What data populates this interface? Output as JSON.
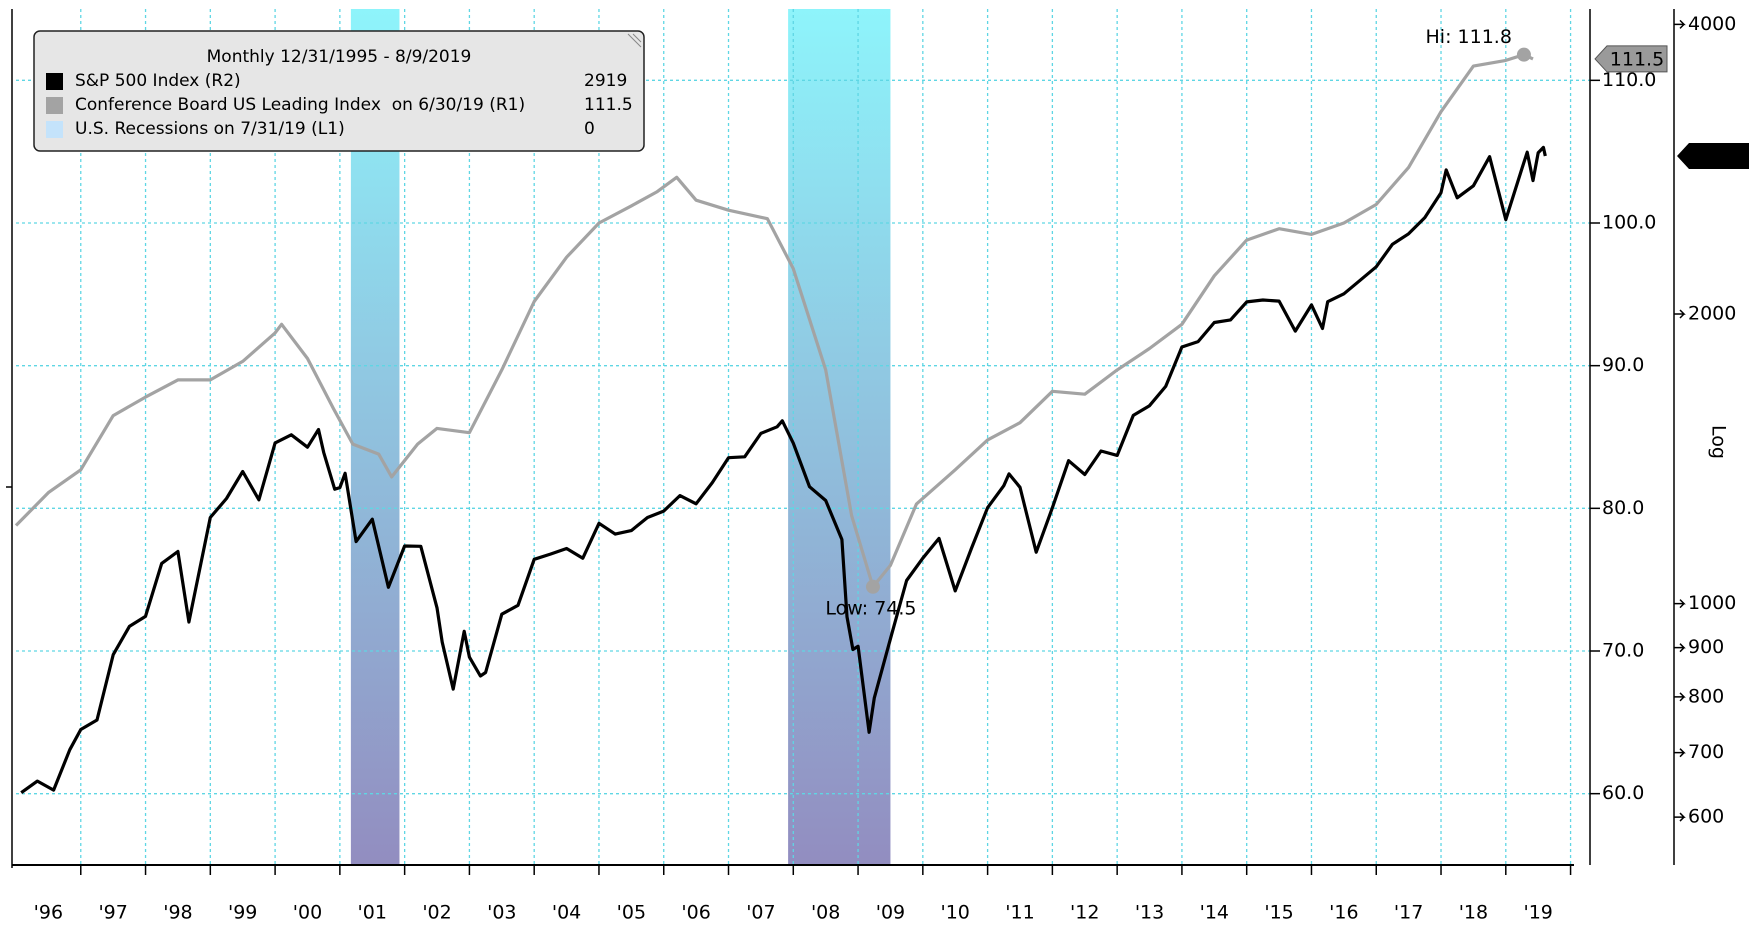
{
  "chart_data": {
    "type": "line",
    "legend_title": "Monthly 12/31/1995 - 8/9/2019",
    "xlim": [
      1996,
      2020.3
    ],
    "xticks": [
      {
        "value": 1996.5,
        "label": "'96"
      },
      {
        "value": 1997.5,
        "label": "'97"
      },
      {
        "value": 1998.5,
        "label": "'98"
      },
      {
        "value": 1999.5,
        "label": "'99"
      },
      {
        "value": 2000.5,
        "label": "'00"
      },
      {
        "value": 2001.5,
        "label": "'01"
      },
      {
        "value": 2002.5,
        "label": "'02"
      },
      {
        "value": 2003.5,
        "label": "'03"
      },
      {
        "value": 2004.5,
        "label": "'04"
      },
      {
        "value": 2005.5,
        "label": "'05"
      },
      {
        "value": 2006.5,
        "label": "'06"
      },
      {
        "value": 2007.5,
        "label": "'07"
      },
      {
        "value": 2008.5,
        "label": "'08"
      },
      {
        "value": 2009.5,
        "label": "'09"
      },
      {
        "value": 2010.5,
        "label": "'10"
      },
      {
        "value": 2011.5,
        "label": "'11"
      },
      {
        "value": 2012.5,
        "label": "'12"
      },
      {
        "value": 2013.5,
        "label": "'13"
      },
      {
        "value": 2014.5,
        "label": "'14"
      },
      {
        "value": 2015.5,
        "label": "'15"
      },
      {
        "value": 2016.5,
        "label": "'16"
      },
      {
        "value": 2017.5,
        "label": "'17"
      },
      {
        "value": 2018.5,
        "label": "'18"
      },
      {
        "value": 2019.5,
        "label": "'19"
      }
    ],
    "xgrid": [
      1997,
      1998,
      1999,
      2000,
      2001,
      2002,
      2003,
      2004,
      2005,
      2006,
      2007,
      2008,
      2009,
      2010,
      2011,
      2012,
      2013,
      2014,
      2015,
      2016,
      2017,
      2018,
      2019,
      2020
    ],
    "ylim": [
      55,
      115
    ],
    "yticks": [
      {
        "value": 60,
        "label": "60.0"
      },
      {
        "value": 70,
        "label": "70.0"
      },
      {
        "value": 80,
        "label": "80.0"
      },
      {
        "value": 90,
        "label": "90.0"
      },
      {
        "value": 100,
        "label": "100.0"
      },
      {
        "value": 110,
        "label": "110.0"
      }
    ],
    "grid": true,
    "y2lim": [
      535,
      4150
    ],
    "y2ticks": [
      600,
      700,
      800,
      900,
      1000,
      2000,
      4000
    ],
    "y2_log": true,
    "y2_label": "Log",
    "series": [
      {
        "name": "S&P 500 Index (R2)",
        "color": "#000000",
        "axis": "y2",
        "x": [
          1996.08,
          1996.33,
          1996.58,
          1996.83,
          1997.0,
          1997.25,
          1997.5,
          1997.75,
          1998.0,
          1998.25,
          1998.5,
          1998.67,
          1998.75,
          1999.0,
          1999.25,
          1999.5,
          1999.75,
          2000.0,
          2000.25,
          2000.5,
          2000.67,
          2000.75,
          2000.92,
          2001.0,
          2001.08,
          2001.25,
          2001.5,
          2001.75,
          2002.0,
          2002.25,
          2002.5,
          2002.58,
          2002.75,
          2002.92,
          2003.0,
          2003.17,
          2003.25,
          2003.5,
          2003.75,
          2004.0,
          2004.25,
          2004.5,
          2004.75,
          2005.0,
          2005.25,
          2005.5,
          2005.75,
          2006.0,
          2006.25,
          2006.5,
          2006.75,
          2007.0,
          2007.25,
          2007.5,
          2007.75,
          2007.83,
          2008.0,
          2008.25,
          2008.5,
          2008.75,
          2008.83,
          2008.92,
          2009.0,
          2009.17,
          2009.25,
          2009.5,
          2009.75,
          2010.0,
          2010.25,
          2010.5,
          2010.75,
          2011.0,
          2011.25,
          2011.33,
          2011.5,
          2011.75,
          2012.0,
          2012.25,
          2012.5,
          2012.75,
          2013.0,
          2013.25,
          2013.5,
          2013.75,
          2014.0,
          2014.25,
          2014.5,
          2014.75,
          2015.0,
          2015.25,
          2015.5,
          2015.75,
          2016.0,
          2016.17,
          2016.25,
          2016.5,
          2016.75,
          2017.0,
          2017.25,
          2017.5,
          2017.75,
          2018.0,
          2018.08,
          2018.25,
          2018.5,
          2018.75,
          2019.0,
          2019.25,
          2019.33,
          2019.42,
          2019.5,
          2019.58,
          2019.61
        ],
        "values": [
          636,
          654,
          640,
          705,
          740,
          757,
          885,
          947,
          970,
          1101,
          1133,
          957,
          1017,
          1229,
          1286,
          1372,
          1282,
          1469,
          1498,
          1454,
          1517,
          1436,
          1315,
          1320,
          1366,
          1160,
          1224,
          1040,
          1148,
          1147,
          990,
          912,
          815,
          936,
          880,
          841,
          848,
          975,
          996,
          1112,
          1126,
          1141,
          1115,
          1212,
          1181,
          1191,
          1229,
          1248,
          1295,
          1270,
          1336,
          1418,
          1421,
          1503,
          1527,
          1549,
          1468,
          1323,
          1280,
          1166,
          969,
          896,
          903,
          735,
          798,
          919,
          1057,
          1115,
          1169,
          1031,
          1141,
          1258,
          1326,
          1364,
          1321,
          1131,
          1258,
          1408,
          1362,
          1441,
          1426,
          1569,
          1606,
          1682,
          1848,
          1872,
          1960,
          1972,
          2059,
          2068,
          2063,
          1920,
          2044,
          1932,
          2060,
          2099,
          2168,
          2239,
          2363,
          2423,
          2519,
          2674,
          2824,
          2641,
          2718,
          2914,
          2507,
          2834,
          2946,
          2752,
          2942,
          2980,
          2919
        ]
      },
      {
        "name": "Conference Board US Leading Index  on 6/30/19 (R1)",
        "color": "#a3a3a3",
        "axis": "y",
        "x": [
          1996.0,
          1996.5,
          1997.0,
          1997.5,
          1998.0,
          1998.5,
          1999.0,
          1999.5,
          2000.0,
          2000.1,
          2000.5,
          2000.9,
          2001.2,
          2001.6,
          2001.8,
          2002.2,
          2002.5,
          2003.0,
          2003.5,
          2004.0,
          2004.5,
          2005.0,
          2005.5,
          2005.9,
          2006.2,
          2006.5,
          2007.0,
          2007.6,
          2008.0,
          2008.5,
          2008.9,
          2009.23,
          2009.5,
          2009.9,
          2010.5,
          2011.0,
          2011.5,
          2012.0,
          2012.5,
          2013.0,
          2013.5,
          2014.0,
          2014.5,
          2015.0,
          2015.5,
          2016.0,
          2016.5,
          2017.0,
          2017.5,
          2018.0,
          2018.5,
          2019.0,
          2019.28,
          2019.42
        ],
        "values": [
          78.8,
          81.1,
          82.7,
          86.5,
          87.8,
          89.0,
          89.0,
          90.3,
          92.3,
          92.9,
          90.5,
          87.0,
          84.5,
          83.8,
          82.2,
          84.5,
          85.6,
          85.3,
          89.7,
          94.5,
          97.6,
          100.0,
          101.2,
          102.2,
          103.2,
          101.6,
          100.9,
          100.3,
          96.8,
          89.7,
          79.5,
          74.5,
          76.0,
          80.3,
          82.7,
          84.8,
          86.0,
          88.2,
          88.0,
          89.7,
          91.2,
          92.9,
          96.3,
          98.8,
          99.6,
          99.2,
          100.0,
          101.3,
          103.9,
          107.8,
          111.0,
          111.4,
          111.8,
          111.5
        ]
      },
      {
        "name": "U.S. Recessions on 7/31/19 (L1)",
        "color": "#c4e3fb",
        "last_value": 0,
        "fill_top": "#8ef4fb",
        "fill_bottom": "#928dc0",
        "ranges": [
          [
            2001.17,
            2001.92
          ],
          [
            2007.92,
            2009.5
          ]
        ]
      }
    ],
    "markers": [
      {
        "label": "Hi: 111.8",
        "x": 2019.28,
        "value": 111.8
      },
      {
        "label": "Low: 74.5",
        "x": 2009.23,
        "value": 74.5
      }
    ]
  }
}
